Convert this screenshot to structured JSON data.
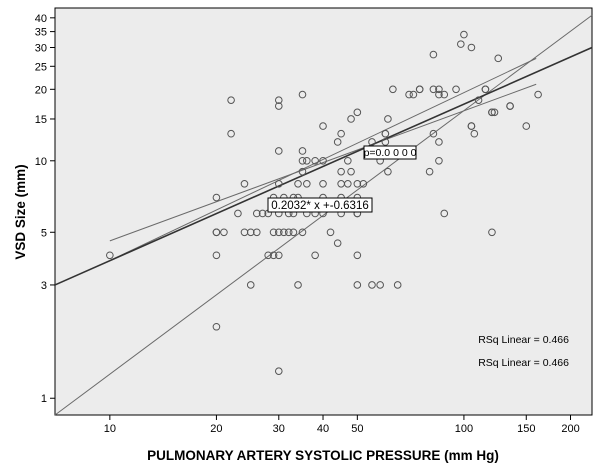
{
  "chart_data": {
    "type": "scatter",
    "xlabel": "PULMONARY ARTERY SYSTOLIC PRESSURE (mm Hg)",
    "ylabel": "VSD Size (mm)",
    "x_scale": "log",
    "y_scale": "log",
    "xlim": [
      7,
      230
    ],
    "ylim": [
      0.85,
      44
    ],
    "x_ticks": [
      10,
      20,
      30,
      40,
      50,
      100,
      150,
      200
    ],
    "y_ticks": [
      1,
      3,
      5,
      10,
      15,
      20,
      25,
      30,
      35,
      40
    ],
    "grid": false,
    "fit_line_label": "0.2032* x +-0.6316",
    "p_value_label": "p=0.0 0 0 0",
    "r_squared_labels": [
      "RSq Linear = 0.466",
      "RSq Linear = 0.466"
    ],
    "fit_line": {
      "x": [
        7,
        230
      ],
      "y": [
        3.0,
        30.0
      ]
    },
    "ci_lines": [
      {
        "x": [
          10,
          160
        ],
        "y": [
          4.6,
          21
        ]
      },
      {
        "x": [
          10,
          160
        ],
        "y": [
          3.8,
          27
        ]
      },
      {
        "x": [
          7,
          230
        ],
        "y": [
          0.85,
          41
        ]
      }
    ],
    "points": [
      {
        "x": 10,
        "y": 4
      },
      {
        "x": 20,
        "y": 2
      },
      {
        "x": 20,
        "y": 4
      },
      {
        "x": 20,
        "y": 5
      },
      {
        "x": 20,
        "y": 5
      },
      {
        "x": 20,
        "y": 7
      },
      {
        "x": 21,
        "y": 5
      },
      {
        "x": 22,
        "y": 18
      },
      {
        "x": 22,
        "y": 13
      },
      {
        "x": 23,
        "y": 6
      },
      {
        "x": 24,
        "y": 5
      },
      {
        "x": 24,
        "y": 8
      },
      {
        "x": 25,
        "y": 3
      },
      {
        "x": 25,
        "y": 5
      },
      {
        "x": 26,
        "y": 5
      },
      {
        "x": 26,
        "y": 6
      },
      {
        "x": 27,
        "y": 6
      },
      {
        "x": 28,
        "y": 4
      },
      {
        "x": 28,
        "y": 6
      },
      {
        "x": 29,
        "y": 4
      },
      {
        "x": 29,
        "y": 5
      },
      {
        "x": 29,
        "y": 7
      },
      {
        "x": 30,
        "y": 1.3
      },
      {
        "x": 30,
        "y": 4
      },
      {
        "x": 30,
        "y": 5
      },
      {
        "x": 30,
        "y": 6
      },
      {
        "x": 30,
        "y": 8
      },
      {
        "x": 30,
        "y": 11
      },
      {
        "x": 30,
        "y": 17
      },
      {
        "x": 30,
        "y": 18
      },
      {
        "x": 31,
        "y": 5
      },
      {
        "x": 31,
        "y": 7
      },
      {
        "x": 32,
        "y": 5
      },
      {
        "x": 32,
        "y": 6
      },
      {
        "x": 33,
        "y": 5
      },
      {
        "x": 33,
        "y": 6
      },
      {
        "x": 33,
        "y": 7
      },
      {
        "x": 34,
        "y": 3
      },
      {
        "x": 34,
        "y": 7
      },
      {
        "x": 34,
        "y": 8
      },
      {
        "x": 35,
        "y": 5
      },
      {
        "x": 35,
        "y": 9
      },
      {
        "x": 35,
        "y": 10
      },
      {
        "x": 35,
        "y": 11
      },
      {
        "x": 35,
        "y": 19
      },
      {
        "x": 36,
        "y": 6
      },
      {
        "x": 36,
        "y": 8
      },
      {
        "x": 36,
        "y": 10
      },
      {
        "x": 38,
        "y": 4
      },
      {
        "x": 38,
        "y": 6
      },
      {
        "x": 38,
        "y": 10
      },
      {
        "x": 40,
        "y": 6
      },
      {
        "x": 40,
        "y": 7
      },
      {
        "x": 40,
        "y": 8
      },
      {
        "x": 40,
        "y": 10
      },
      {
        "x": 40,
        "y": 14
      },
      {
        "x": 42,
        "y": 5
      },
      {
        "x": 44,
        "y": 12
      },
      {
        "x": 44,
        "y": 4.5
      },
      {
        "x": 45,
        "y": 6
      },
      {
        "x": 45,
        "y": 7
      },
      {
        "x": 45,
        "y": 8
      },
      {
        "x": 45,
        "y": 9
      },
      {
        "x": 45,
        "y": 13
      },
      {
        "x": 47,
        "y": 8
      },
      {
        "x": 47,
        "y": 10
      },
      {
        "x": 48,
        "y": 9
      },
      {
        "x": 48,
        "y": 15
      },
      {
        "x": 50,
        "y": 3
      },
      {
        "x": 50,
        "y": 4
      },
      {
        "x": 50,
        "y": 6
      },
      {
        "x": 50,
        "y": 6
      },
      {
        "x": 50,
        "y": 7
      },
      {
        "x": 50,
        "y": 8
      },
      {
        "x": 50,
        "y": 16
      },
      {
        "x": 52,
        "y": 8
      },
      {
        "x": 55,
        "y": 3
      },
      {
        "x": 55,
        "y": 12
      },
      {
        "x": 58,
        "y": 3
      },
      {
        "x": 58,
        "y": 10
      },
      {
        "x": 60,
        "y": 12
      },
      {
        "x": 60,
        "y": 13
      },
      {
        "x": 60,
        "y": 13
      },
      {
        "x": 61,
        "y": 9
      },
      {
        "x": 61,
        "y": 15
      },
      {
        "x": 63,
        "y": 20
      },
      {
        "x": 65,
        "y": 3
      },
      {
        "x": 70,
        "y": 19
      },
      {
        "x": 72,
        "y": 19
      },
      {
        "x": 75,
        "y": 20
      },
      {
        "x": 75,
        "y": 20
      },
      {
        "x": 80,
        "y": 9
      },
      {
        "x": 82,
        "y": 20
      },
      {
        "x": 82,
        "y": 28
      },
      {
        "x": 82,
        "y": 13
      },
      {
        "x": 85,
        "y": 10
      },
      {
        "x": 85,
        "y": 12
      },
      {
        "x": 85,
        "y": 19
      },
      {
        "x": 85,
        "y": 20
      },
      {
        "x": 88,
        "y": 6
      },
      {
        "x": 88,
        "y": 19
      },
      {
        "x": 95,
        "y": 20
      },
      {
        "x": 98,
        "y": 31
      },
      {
        "x": 100,
        "y": 34
      },
      {
        "x": 105,
        "y": 14
      },
      {
        "x": 105,
        "y": 14
      },
      {
        "x": 105,
        "y": 30
      },
      {
        "x": 107,
        "y": 13
      },
      {
        "x": 110,
        "y": 18
      },
      {
        "x": 115,
        "y": 20
      },
      {
        "x": 115,
        "y": 20
      },
      {
        "x": 120,
        "y": 5
      },
      {
        "x": 120,
        "y": 16
      },
      {
        "x": 120,
        "y": 16
      },
      {
        "x": 122,
        "y": 16
      },
      {
        "x": 125,
        "y": 27
      },
      {
        "x": 135,
        "y": 17
      },
      {
        "x": 135,
        "y": 17
      },
      {
        "x": 150,
        "y": 14
      },
      {
        "x": 162,
        "y": 19
      }
    ],
    "colors": {
      "plot_background": "#ececec",
      "fit_line": "#333333",
      "ci_line": "#6a6a6a",
      "marker": "#555555"
    }
  }
}
